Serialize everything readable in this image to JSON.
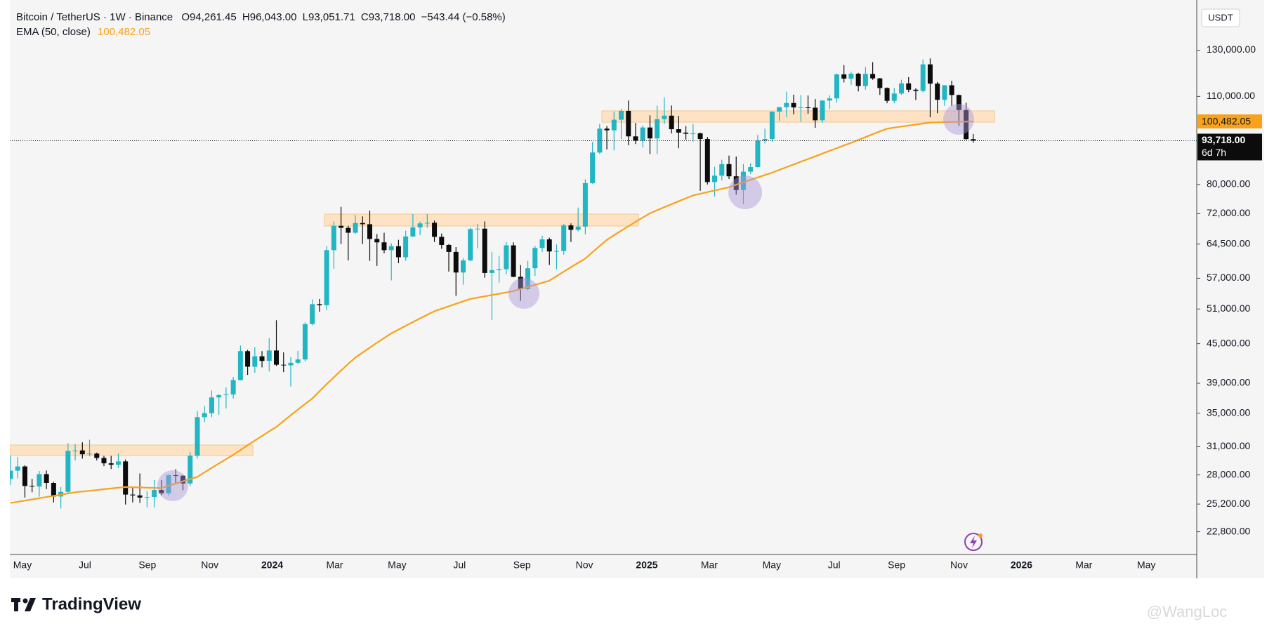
{
  "chart_data": {
    "type": "candlestick",
    "header": {
      "symbol": "Bitcoin / TetherUS · 1W · Binance",
      "ohlc_labels": [
        "O94,261.45",
        "H96,043.00",
        "L93,051.71",
        "C93,718.00"
      ],
      "change": "−543.44 (−0.58%)"
    },
    "currency": "USDT",
    "brand": "TradingView",
    "watermark": "@WangLoc",
    "log_scale": true,
    "up_color": "#22b5c4",
    "down_color": "#0c0c0c",
    "x_labels": [
      "May",
      "Jul",
      "Sep",
      "Nov",
      "2024",
      "Mar",
      "May",
      "Jul",
      "Sep",
      "Nov",
      "2025",
      "Mar",
      "May",
      "Jul",
      "Sep",
      "Nov",
      "2026",
      "Mar",
      "May"
    ],
    "ylim": [
      21000,
      153500
    ],
    "yticks": [
      {
        "value": 130000,
        "label": "130,000.00"
      },
      {
        "value": 110000,
        "label": "110,000.00"
      },
      {
        "value": 80000,
        "label": "80,000.00"
      },
      {
        "value": 72000,
        "label": "72,000.00"
      },
      {
        "value": 64500,
        "label": "64,500.00"
      },
      {
        "value": 57000,
        "label": "57,000.00"
      },
      {
        "value": 51000,
        "label": "51,000.00"
      },
      {
        "value": 45000,
        "label": "45,000.00"
      },
      {
        "value": 39000,
        "label": "39,000.00"
      },
      {
        "value": 35000,
        "label": "35,000.00"
      },
      {
        "value": 31000,
        "label": "31,000.00"
      },
      {
        "value": 28000,
        "label": "28,000.00"
      },
      {
        "value": 25200,
        "label": "25,200.00"
      },
      {
        "value": 22800,
        "label": "22,800.00"
      }
    ],
    "last_price_label": "93,718.00",
    "countdown": "6d 7h",
    "open": [
      27590,
      28430,
      28870,
      26900,
      26850,
      28080,
      27200,
      25900,
      26340,
      30540,
      30590,
      30170,
      30240,
      29770,
      29200,
      29050,
      29400,
      26080,
      26000,
      25800,
      25850,
      26520,
      26200,
      27970,
      27920,
      27150,
      30000,
      34500,
      35000,
      37050,
      37350,
      37450,
      39450,
      43800,
      41400,
      42990,
      42280,
      43900,
      41700,
      41600,
      42000,
      42500,
      48300,
      51900,
      51700,
      63100,
      68900,
      68400,
      67200,
      69600,
      69300,
      65700,
      64900,
      63100,
      64000,
      61500,
      66300,
      68500,
      69500,
      69650,
      66200,
      64300,
      62700,
      58200,
      60800,
      68100,
      68200,
      58100,
      58700,
      58900,
      64200,
      57300,
      54800,
      59100,
      63600,
      65600,
      62800,
      62900,
      69000,
      67900,
      68700,
      80400,
      89800,
      97900,
      97300,
      101100,
      104400,
      95200,
      93700,
      98300,
      94500,
      101300,
      102600,
      97700,
      96500,
      96100,
      96250,
      94300,
      80700,
      82600,
      86100,
      82400,
      78400,
      83800,
      85200,
      93800,
      94300,
      104100,
      105800,
      107400,
      105700,
      105700,
      105600,
      100900,
      108350,
      109200,
      119100,
      117300,
      119400,
      114200,
      119300,
      117400,
      113400,
      108250,
      111150,
      115300,
      112700,
      112200,
      123500,
      115200,
      108650,
      114500,
      110550,
      104700,
      94261.45
    ],
    "high": [
      30036,
      29850,
      29000,
      27600,
      28400,
      28450,
      27300,
      26800,
      31400,
      31280,
      31500,
      31800,
      30350,
      29990,
      30000,
      30250,
      29600,
      26800,
      28150,
      26400,
      27480,
      27480,
      28060,
      28580,
      28000,
      30400,
      35280,
      35900,
      37980,
      37500,
      38400,
      39900,
      44700,
      44000,
      44400,
      43800,
      45900,
      48970,
      43600,
      42850,
      43850,
      48600,
      52800,
      52900,
      64000,
      70000,
      73800,
      68900,
      71600,
      71300,
      72800,
      66900,
      67200,
      64700,
      65500,
      67700,
      71900,
      70000,
      71900,
      70200,
      67000,
      64500,
      63800,
      61300,
      68400,
      69400,
      70000,
      62700,
      61800,
      65000,
      64900,
      59800,
      60700,
      64100,
      66500,
      66000,
      64400,
      69400,
      69500,
      73600,
      81500,
      93300,
      99600,
      98800,
      104100,
      105200,
      108350,
      99950,
      99000,
      102700,
      106400,
      109600,
      106450,
      102500,
      98800,
      99500,
      96500,
      95000,
      85300,
      87500,
      88800,
      88500,
      86100,
      86400,
      95700,
      97900,
      104150,
      105800,
      111900,
      110700,
      110500,
      110400,
      108950,
      108500,
      110500,
      119500,
      123200,
      120250,
      119800,
      122300,
      124500,
      117600,
      113600,
      113400,
      116800,
      117900,
      113300,
      125700,
      126200,
      115900,
      114600,
      116400,
      110750,
      107500,
      96043
    ],
    "low": [
      27000,
      27650,
      25800,
      26300,
      25880,
      26600,
      25350,
      24800,
      26250,
      29500,
      29700,
      29950,
      29500,
      28900,
      28600,
      28700,
      25160,
      25350,
      25300,
      24900,
      24900,
      26000,
      25990,
      27200,
      26500,
      26900,
      29700,
      33900,
      34500,
      34800,
      35600,
      36900,
      39400,
      40200,
      40500,
      41300,
      40700,
      41500,
      40600,
      38550,
      41800,
      42200,
      48100,
      50500,
      50800,
      59000,
      64500,
      60800,
      66900,
      64500,
      60700,
      59600,
      62400,
      56550,
      60200,
      60700,
      66200,
      66600,
      68400,
      65000,
      63400,
      58400,
      53500,
      55700,
      60600,
      63500,
      57100,
      49000,
      56100,
      57800,
      57200,
      52550,
      54600,
      57500,
      62700,
      59800,
      58900,
      62100,
      65000,
      67500,
      66800,
      80200,
      89400,
      90800,
      90500,
      94200,
      92200,
      92600,
      91500,
      89300,
      89300,
      99500,
      96200,
      91200,
      94100,
      93400,
      78200,
      80000,
      76600,
      81200,
      81600,
      77100,
      74500,
      83100,
      85100,
      92800,
      93400,
      100700,
      102000,
      103100,
      100400,
      103300,
      98200,
      100000,
      105100,
      107500,
      115700,
      114700,
      112000,
      112700,
      116800,
      110600,
      107300,
      107300,
      110600,
      111700,
      108600,
      111600,
      102000,
      103500,
      106300,
      106300,
      98900,
      94000,
      93051.71
    ],
    "close": [
      28430,
      28870,
      26900,
      26850,
      28080,
      27200,
      25900,
      26340,
      30540,
      30590,
      30170,
      30240,
      29770,
      29200,
      29050,
      29400,
      26080,
      26000,
      25800,
      25850,
      26520,
      26200,
      27970,
      27920,
      27150,
      30000,
      34500,
      35000,
      37050,
      37350,
      37450,
      39450,
      43800,
      41400,
      42990,
      42280,
      43900,
      41700,
      41600,
      42000,
      42500,
      48300,
      51900,
      51700,
      63100,
      68900,
      68400,
      67200,
      69600,
      69300,
      65700,
      64900,
      63100,
      64000,
      61500,
      66300,
      68500,
      69500,
      69650,
      66200,
      64300,
      62700,
      58200,
      60800,
      68100,
      68200,
      58100,
      58700,
      58900,
      64200,
      57300,
      54800,
      59100,
      63600,
      65600,
      62800,
      62900,
      69000,
      67900,
      68700,
      80400,
      89800,
      97900,
      97300,
      101100,
      104400,
      95200,
      93700,
      98300,
      94500,
      101300,
      102600,
      97700,
      96500,
      96100,
      96250,
      94300,
      80700,
      82600,
      86100,
      82400,
      78400,
      83800,
      85200,
      93800,
      94300,
      104100,
      105800,
      107400,
      105700,
      105700,
      105600,
      100900,
      108350,
      109200,
      119100,
      117300,
      119400,
      114200,
      119300,
      117400,
      113400,
      108250,
      111150,
      115300,
      112700,
      112200,
      123500,
      115200,
      108650,
      114500,
      110550,
      104700,
      94250,
      93718
    ],
    "series": [
      {
        "name": "EMA (50, close)",
        "color": "#f7a21b",
        "last_label": "100,482.05",
        "values": [
          25300,
          25410,
          25520,
          25630,
          25740,
          25850,
          25960,
          26070,
          26190,
          26300,
          26370,
          26440,
          26510,
          26590,
          26660,
          26730,
          26800,
          26780,
          26760,
          26740,
          26720,
          26700,
          26920,
          27140,
          27360,
          27580,
          27800,
          28260,
          28720,
          29180,
          29640,
          30100,
          30630,
          31170,
          31700,
          32230,
          32770,
          33300,
          34020,
          34740,
          35460,
          36180,
          36900,
          37880,
          38870,
          39850,
          40830,
          41820,
          42800,
          43580,
          44360,
          45140,
          45920,
          46700,
          47350,
          48000,
          48650,
          49300,
          49950,
          50600,
          51060,
          51520,
          51980,
          52440,
          52900,
          53150,
          53400,
          53650,
          53900,
          54150,
          54400,
          54820,
          55240,
          55660,
          56080,
          56500,
          57440,
          58380,
          59320,
          60260,
          61200,
          62630,
          64070,
          65500,
          66600,
          67700,
          68800,
          69900,
          71000,
          72100,
          72900,
          73700,
          74500,
          75300,
          76100,
          76900,
          77360,
          77820,
          78280,
          78740,
          79200,
          79920,
          80630,
          81350,
          82070,
          82780,
          83500,
          84340,
          85180,
          86020,
          86860,
          87700,
          88580,
          89470,
          90350,
          91230,
          92120,
          93000,
          93980,
          94960,
          95940,
          96920,
          97900,
          98270,
          98630,
          99000,
          99370,
          99730,
          100100,
          100160,
          100220,
          100280,
          100340,
          100410,
          100482.05
        ]
      }
    ]
  }
}
